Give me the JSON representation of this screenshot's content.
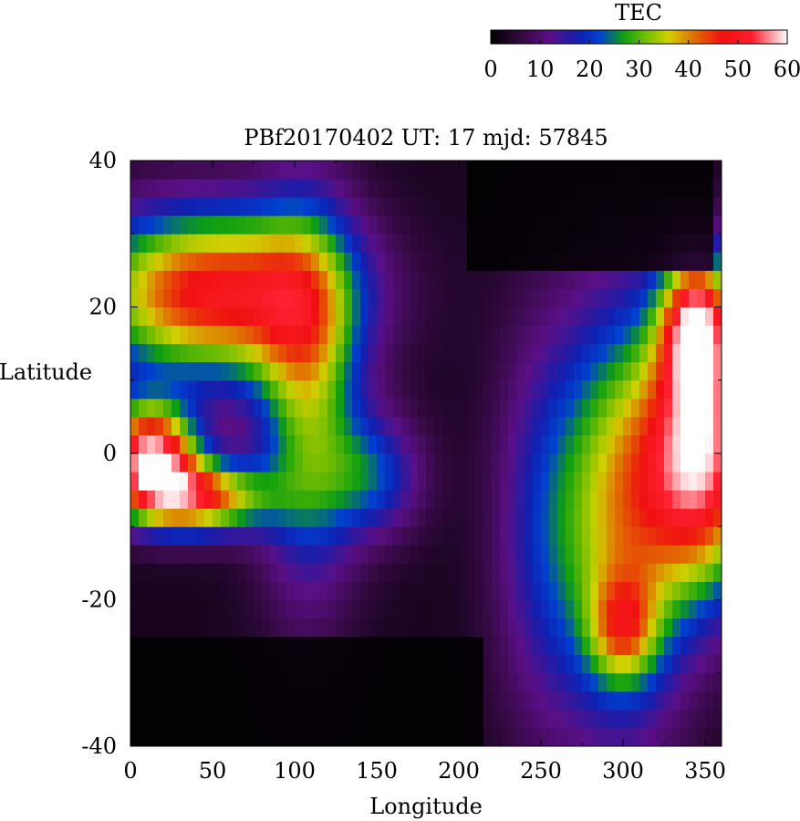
{
  "chart_data": {
    "type": "heatmap",
    "title": "PBf20170402  UT: 17  mjd: 57845",
    "xlabel": "Longitude",
    "ylabel": "Latitude",
    "xlim": [
      0,
      360
    ],
    "ylim": [
      -40,
      40
    ],
    "x_ticks": [
      "0",
      "50",
      "100",
      "150",
      "200",
      "250",
      "300",
      "350"
    ],
    "x_tick_values": [
      0,
      50,
      100,
      150,
      200,
      250,
      300,
      350
    ],
    "y_ticks": [
      "40",
      "20",
      "0",
      "-20",
      "-40"
    ],
    "y_tick_values": [
      40,
      20,
      0,
      -20,
      -40
    ],
    "colorbar": {
      "label": "TEC",
      "range": [
        0,
        60
      ],
      "ticks": [
        "0",
        "10",
        "20",
        "30",
        "40",
        "50",
        "60"
      ],
      "tick_values": [
        0,
        10,
        20,
        30,
        40,
        50,
        60
      ],
      "colormap_stops": [
        {
          "v": 0,
          "color": "#000000"
        },
        {
          "v": 7,
          "color": "#3a0a4a"
        },
        {
          "v": 12,
          "color": "#5a0f86"
        },
        {
          "v": 18,
          "color": "#1020b0"
        },
        {
          "v": 22,
          "color": "#0040d0"
        },
        {
          "v": 27,
          "color": "#10a010"
        },
        {
          "v": 32,
          "color": "#80c000"
        },
        {
          "v": 36,
          "color": "#d0d000"
        },
        {
          "v": 41,
          "color": "#e07000"
        },
        {
          "v": 47,
          "color": "#f01010"
        },
        {
          "v": 53,
          "color": "#ff2030"
        },
        {
          "v": 60,
          "color": "#ffffff"
        }
      ]
    },
    "grid_resolution": {
      "dlon": 5,
      "dlat": 2.5
    },
    "anomalies": [
      {
        "lon": 50,
        "lat": 22,
        "slon": 55,
        "slat": 8,
        "amp": 46,
        "note": "northern crest west"
      },
      {
        "lon": 12,
        "lat": 0,
        "slon": 20,
        "slat": 5,
        "amp": 52,
        "note": "equatorial maximum west"
      },
      {
        "lon": 40,
        "lat": -6,
        "slon": 30,
        "slat": 3.5,
        "amp": 42,
        "note": "southern crest west"
      },
      {
        "lon": 108,
        "lat": 8,
        "slon": 22,
        "slat": 18,
        "amp": 27,
        "note": "eastern lobe"
      },
      {
        "lon": 148,
        "lat": -3,
        "slon": 22,
        "slat": 6,
        "amp": 17,
        "note": "tail"
      },
      {
        "lon": 350,
        "lat": 0,
        "slon": 25,
        "slat": 13,
        "amp": 50,
        "note": "equatorial maximum east"
      },
      {
        "lon": 345,
        "lat": 18,
        "slon": 15,
        "slat": 7,
        "amp": 40,
        "note": "northern crest east"
      },
      {
        "lon": 300,
        "lat": -8,
        "slon": 28,
        "slat": 20,
        "amp": 33,
        "note": "green lobe"
      },
      {
        "lon": 300,
        "lat": -24,
        "slon": 14,
        "slat": 5,
        "amp": 20,
        "note": "southern tip"
      },
      {
        "lon": 250,
        "lat": -10,
        "slon": 22,
        "slat": 20,
        "amp": 12,
        "note": "purple band"
      }
    ],
    "masks": [
      {
        "desc": "dark south west",
        "lon_range": [
          0,
          215
        ],
        "lat_max": -25
      },
      {
        "desc": "dark north east",
        "lon_range": [
          205,
          355
        ],
        "lat_min": 26
      }
    ]
  }
}
